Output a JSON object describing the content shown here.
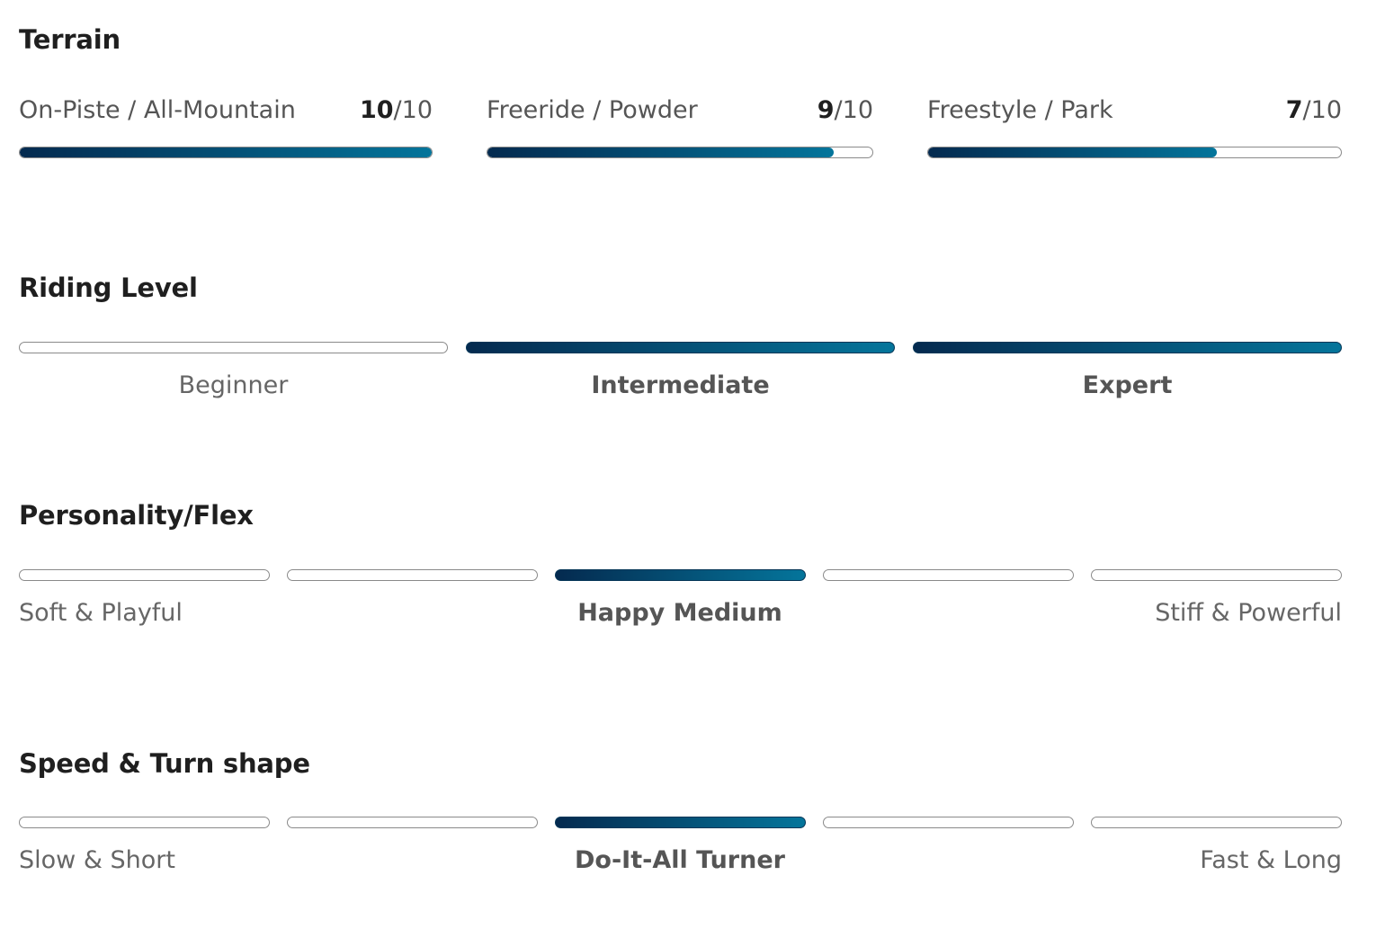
{
  "terrain": {
    "title": "Terrain",
    "items": [
      {
        "label": "On-Piste / All-Mountain",
        "score": "10",
        "max": "/10",
        "fill": 1.0
      },
      {
        "label": "Freeride / Powder",
        "score": "9",
        "max": "/10",
        "fill": 0.9
      },
      {
        "label": "Freestyle / Park",
        "score": "7",
        "max": "/10",
        "fill": 0.7
      }
    ]
  },
  "riding_level": {
    "title": "Riding Level",
    "segments": [
      {
        "label": "Beginner",
        "active": false
      },
      {
        "label": "Intermediate",
        "active": true
      },
      {
        "label": "Expert",
        "active": true
      }
    ]
  },
  "personality": {
    "title": "Personality/Flex",
    "active_index": 2,
    "segment_count": 5,
    "left_label": "Soft & Playful",
    "center_label": "Happy Medium",
    "right_label": "Stiff & Powerful"
  },
  "speed": {
    "title": "Speed & Turn shape",
    "active_index": 2,
    "segment_count": 5,
    "left_label": "Slow & Short",
    "center_label": "Do-It-All Turner",
    "right_label": "Fast & Long"
  },
  "colors": {
    "gradient_start": "#042a4f",
    "gradient_end": "#04759b",
    "inactive_border": "#8a8a8a"
  }
}
